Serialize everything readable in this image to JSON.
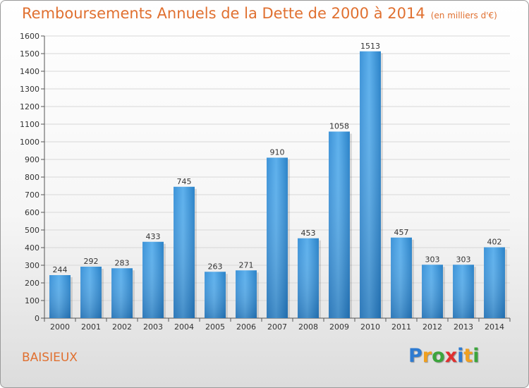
{
  "header": {
    "title": "Remboursements Annuels de la Dette de 2000 à 2014",
    "subtitle": "(en milliers d'€)"
  },
  "footer": {
    "commune": "BAISIEUX",
    "logo_text": "Proxiti"
  },
  "colors": {
    "title": "#e07030",
    "bar_light": "#5db0ec",
    "bar_dark": "#1f78c0",
    "grid": "#d8d8d8"
  },
  "chart_data": {
    "type": "bar",
    "title": "Remboursements Annuels de la Dette de 2000 à 2014",
    "xlabel": "",
    "ylabel": "",
    "ylim": [
      0,
      1600
    ],
    "ytick_step": 100,
    "grid": true,
    "categories": [
      "2000",
      "2001",
      "2002",
      "2003",
      "2004",
      "2005",
      "2006",
      "2007",
      "2008",
      "2009",
      "2010",
      "2011",
      "2012",
      "2013",
      "2014"
    ],
    "values": [
      244,
      292,
      283,
      433,
      745,
      263,
      271,
      910,
      453,
      1058,
      1513,
      457,
      303,
      303,
      402
    ]
  }
}
